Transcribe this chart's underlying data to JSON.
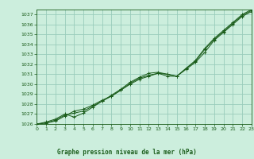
{
  "title": "Graphe pression niveau de la mer (hPa)",
  "bg_color": "#cceedd",
  "plot_bg_color": "#cceedd",
  "grid_color": "#99ccbb",
  "line_color": "#1a5c1a",
  "marker_color": "#1a5c1a",
  "xlim": [
    0,
    23
  ],
  "ylim": [
    1026,
    1037.5
  ],
  "yticks": [
    1026,
    1027,
    1028,
    1029,
    1030,
    1031,
    1032,
    1033,
    1034,
    1035,
    1036,
    1037
  ],
  "xticks": [
    0,
    1,
    2,
    3,
    4,
    5,
    6,
    7,
    8,
    9,
    10,
    11,
    12,
    13,
    14,
    15,
    16,
    17,
    18,
    19,
    20,
    21,
    22,
    23
  ],
  "series": [
    [
      1026.0,
      1026.1,
      1026.3,
      1026.8,
      1027.3,
      1027.5,
      1027.9,
      1028.4,
      1028.8,
      1029.4,
      1030.0,
      1030.5,
      1030.8,
      1031.1,
      1031.0,
      1030.8,
      1031.5,
      1032.2,
      1033.2,
      1034.4,
      1035.2,
      1036.0,
      1036.8,
      1037.3
    ],
    [
      1026.0,
      1026.2,
      1026.5,
      1027.0,
      1026.7,
      1027.1,
      1027.7,
      1028.3,
      1028.8,
      1029.4,
      1030.1,
      1030.6,
      1030.9,
      1031.1,
      1030.8,
      1030.8,
      1031.6,
      1032.3,
      1033.5,
      1034.5,
      1035.3,
      1036.1,
      1036.9,
      1037.4
    ],
    [
      1026.0,
      1026.1,
      1026.4,
      1026.9,
      1027.1,
      1027.3,
      1027.8,
      1028.3,
      1028.9,
      1029.5,
      1030.2,
      1030.7,
      1031.1,
      1031.2,
      1031.0,
      1030.8,
      1031.6,
      1032.4,
      1033.6,
      1034.6,
      1035.4,
      1036.2,
      1037.0,
      1037.5
    ]
  ],
  "xlabel_fontsize": 5.5,
  "tick_fontsize": 4.5
}
